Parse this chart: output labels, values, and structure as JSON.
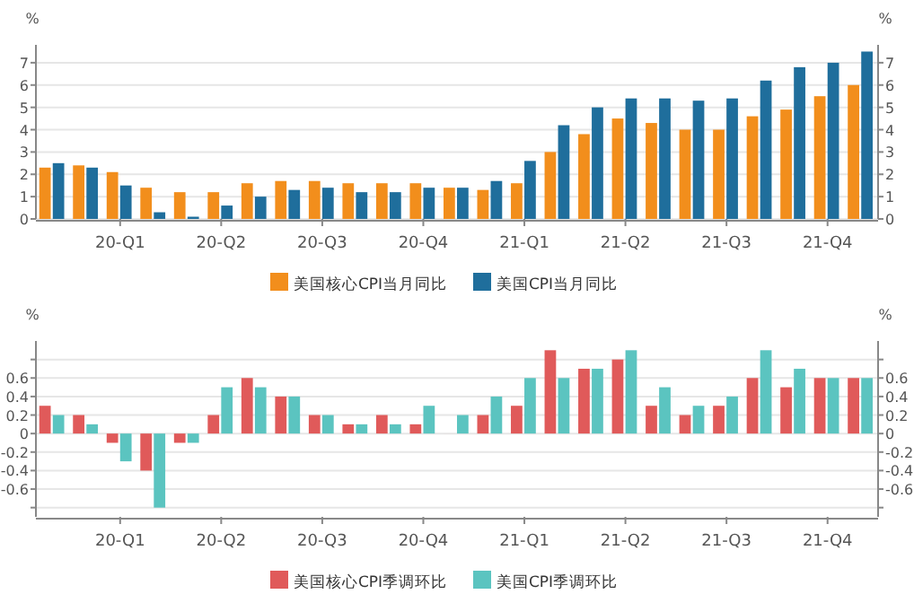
{
  "chart_data": [
    {
      "type": "bar",
      "ylabel": "%",
      "y2label": "%",
      "categories": [
        null,
        null,
        "20-Q1",
        null,
        null,
        "20-Q2",
        null,
        null,
        "20-Q3",
        null,
        null,
        "20-Q4",
        null,
        null,
        "21-Q1",
        null,
        null,
        "21-Q2",
        null,
        null,
        "21-Q3",
        null,
        null,
        "21-Q4",
        null
      ],
      "series": [
        {
          "name": "美国核心CPI当月同比",
          "color": "#f28e1c",
          "values": [
            2.3,
            2.4,
            2.1,
            1.4,
            1.2,
            1.2,
            1.6,
            1.7,
            1.7,
            1.6,
            1.6,
            1.6,
            1.4,
            1.3,
            1.6,
            3.0,
            3.8,
            4.5,
            4.3,
            4.0,
            4.0,
            4.6,
            4.9,
            5.5,
            6.0
          ]
        },
        {
          "name": "美国CPI当月同比",
          "color": "#1f6e9c",
          "values": [
            2.5,
            2.3,
            1.5,
            0.3,
            0.1,
            0.6,
            1.0,
            1.3,
            1.4,
            1.2,
            1.2,
            1.4,
            1.4,
            1.7,
            2.6,
            4.2,
            5.0,
            5.4,
            5.4,
            5.3,
            5.4,
            6.2,
            6.8,
            7.0,
            7.5
          ]
        }
      ],
      "ylim": [
        0,
        7.8
      ],
      "yticks": [
        0,
        1,
        2,
        3,
        4,
        5,
        6,
        7
      ],
      "y2lim": [
        0,
        7.8
      ],
      "y2ticks": [
        0,
        1,
        2,
        3,
        4,
        5,
        6,
        7
      ],
      "grid": "y",
      "legend": "bottom"
    },
    {
      "type": "bar",
      "ylabel": "%",
      "y2label": "%",
      "categories": [
        null,
        null,
        "20-Q1",
        null,
        null,
        "20-Q2",
        null,
        null,
        "20-Q3",
        null,
        null,
        "20-Q4",
        null,
        null,
        "21-Q1",
        null,
        null,
        "21-Q2",
        null,
        null,
        "21-Q3",
        null,
        null,
        "21-Q4",
        null
      ],
      "series": [
        {
          "name": "美国核心CPI季调环比",
          "color": "#e05a5a",
          "values": [
            0.3,
            0.2,
            -0.1,
            -0.4,
            -0.1,
            0.2,
            0.6,
            0.4,
            0.2,
            0.1,
            0.2,
            0.1,
            0.0,
            0.2,
            0.3,
            0.9,
            0.7,
            0.8,
            0.3,
            0.2,
            0.3,
            0.6,
            0.5,
            0.6,
            0.6
          ]
        },
        {
          "name": "美国CPI季调环比",
          "color": "#5bc4c0",
          "values": [
            0.2,
            0.1,
            -0.3,
            -0.8,
            -0.1,
            0.5,
            0.5,
            0.4,
            0.2,
            0.1,
            0.1,
            0.3,
            0.2,
            0.4,
            0.6,
            0.6,
            0.7,
            0.9,
            0.5,
            0.3,
            0.4,
            0.9,
            0.7,
            0.6,
            0.6
          ]
        }
      ],
      "ylim": [
        -0.9,
        1.0
      ],
      "yticks": [
        {
          "value": 0.8,
          "label": null
        },
        0.6,
        0.4,
        0.2,
        0,
        -0.2,
        -0.4,
        -0.6,
        {
          "value": -0.8,
          "label": null
        }
      ],
      "y2lim": [
        -0.9,
        1.0
      ],
      "y2ticks": [
        {
          "value": 0.8,
          "label": null
        },
        0.6,
        0.4,
        0.2,
        0,
        -0.2,
        -0.4,
        -0.6,
        {
          "value": -0.8,
          "label": null
        }
      ],
      "grid": "y",
      "legend": "bottom"
    }
  ]
}
